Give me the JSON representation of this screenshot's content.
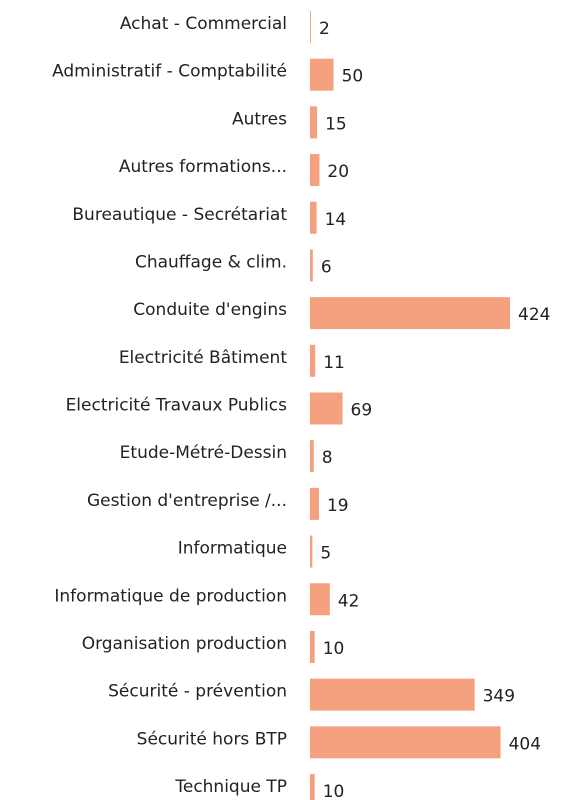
{
  "chart_data": {
    "type": "bar",
    "orientation": "horizontal",
    "color": "#f5a07f",
    "categories": [
      "Achat - Commercial",
      "Administratif - Comptabilité",
      "Autres",
      "Autres formations...",
      "Bureautique - Secrétariat",
      "Chauffage & clim.",
      "Conduite d'engins",
      "Electricité Bâtiment",
      "Electricité Travaux Publics",
      "Etude-Métré-Dessin",
      "Gestion d'entreprise /...",
      "Informatique",
      "Informatique de production",
      "Organisation production",
      "Sécurité - prévention",
      "Sécurité hors BTP",
      "Technique TP"
    ],
    "values": [
      2,
      50,
      15,
      20,
      14,
      6,
      424,
      11,
      69,
      8,
      19,
      5,
      42,
      10,
      349,
      404,
      10
    ]
  }
}
